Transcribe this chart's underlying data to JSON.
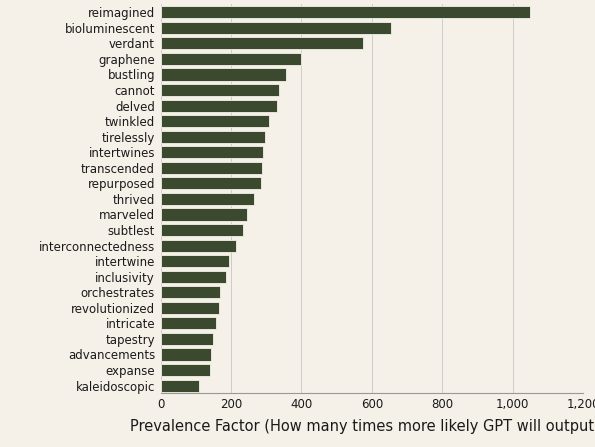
{
  "categories": [
    "kaleidoscopic",
    "expanse",
    "advancements",
    "tapestry",
    "intricate",
    "revolutionized",
    "orchestrates",
    "inclusivity",
    "intertwine",
    "interconnectedness",
    "subtlest",
    "marveled",
    "thrived",
    "repurposed",
    "transcended",
    "intertwines",
    "tirelessly",
    "twinkled",
    "delved",
    "cannot",
    "bustling",
    "graphene",
    "verdant",
    "bioluminescent",
    "reimagined"
  ],
  "values": [
    110,
    140,
    143,
    148,
    158,
    165,
    170,
    185,
    195,
    215,
    235,
    245,
    265,
    285,
    288,
    292,
    295,
    308,
    330,
    335,
    355,
    400,
    575,
    655,
    1050
  ],
  "bar_color": "#3b4a2f",
  "background_color": "#f5f0e8",
  "xlabel": "Prevalence Factor (How many times more likely GPT will output it)",
  "xlim": [
    0,
    1200
  ],
  "xticks": [
    0,
    200,
    400,
    600,
    800,
    1000,
    1200
  ],
  "xtick_labels": [
    "0",
    "200",
    "400",
    "600",
    "800",
    "1,000",
    "1,200"
  ],
  "label_fontsize": 8.5,
  "xlabel_fontsize": 10.5,
  "bar_height": 0.78
}
